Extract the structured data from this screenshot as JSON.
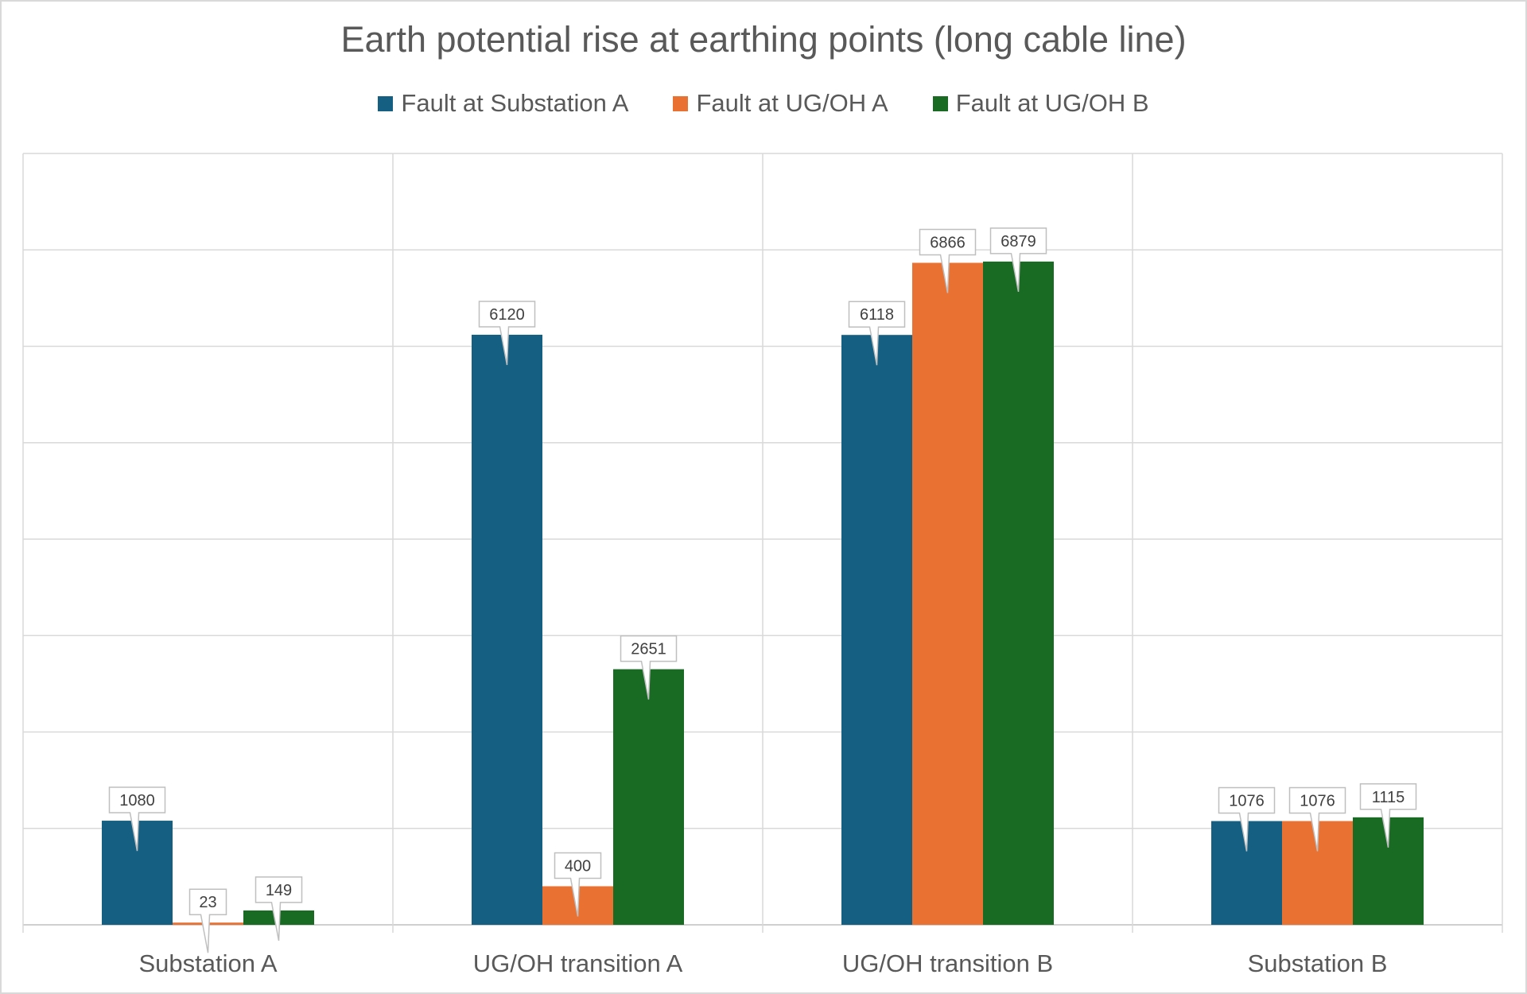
{
  "chart_data": {
    "type": "bar",
    "title": "Earth potential rise at earthing points (long cable line)",
    "categories": [
      "Substation A",
      "UG/OH transition A",
      "UG/OH transition B",
      "Substation B"
    ],
    "series": [
      {
        "name": "Fault at Substation A",
        "color": "#156082",
        "values": [
          1080,
          6120,
          6118,
          1076
        ]
      },
      {
        "name": "Fault at UG/OH A",
        "color": "#E97132",
        "values": [
          23,
          400,
          6866,
          1076
        ]
      },
      {
        "name": "Fault at UG/OH B",
        "color": "#196B24",
        "values": [
          149,
          2651,
          6879,
          1115
        ]
      }
    ],
    "ylim": [
      0,
      8000
    ],
    "grid": true,
    "legend": "top",
    "data_labels": "callouts"
  }
}
